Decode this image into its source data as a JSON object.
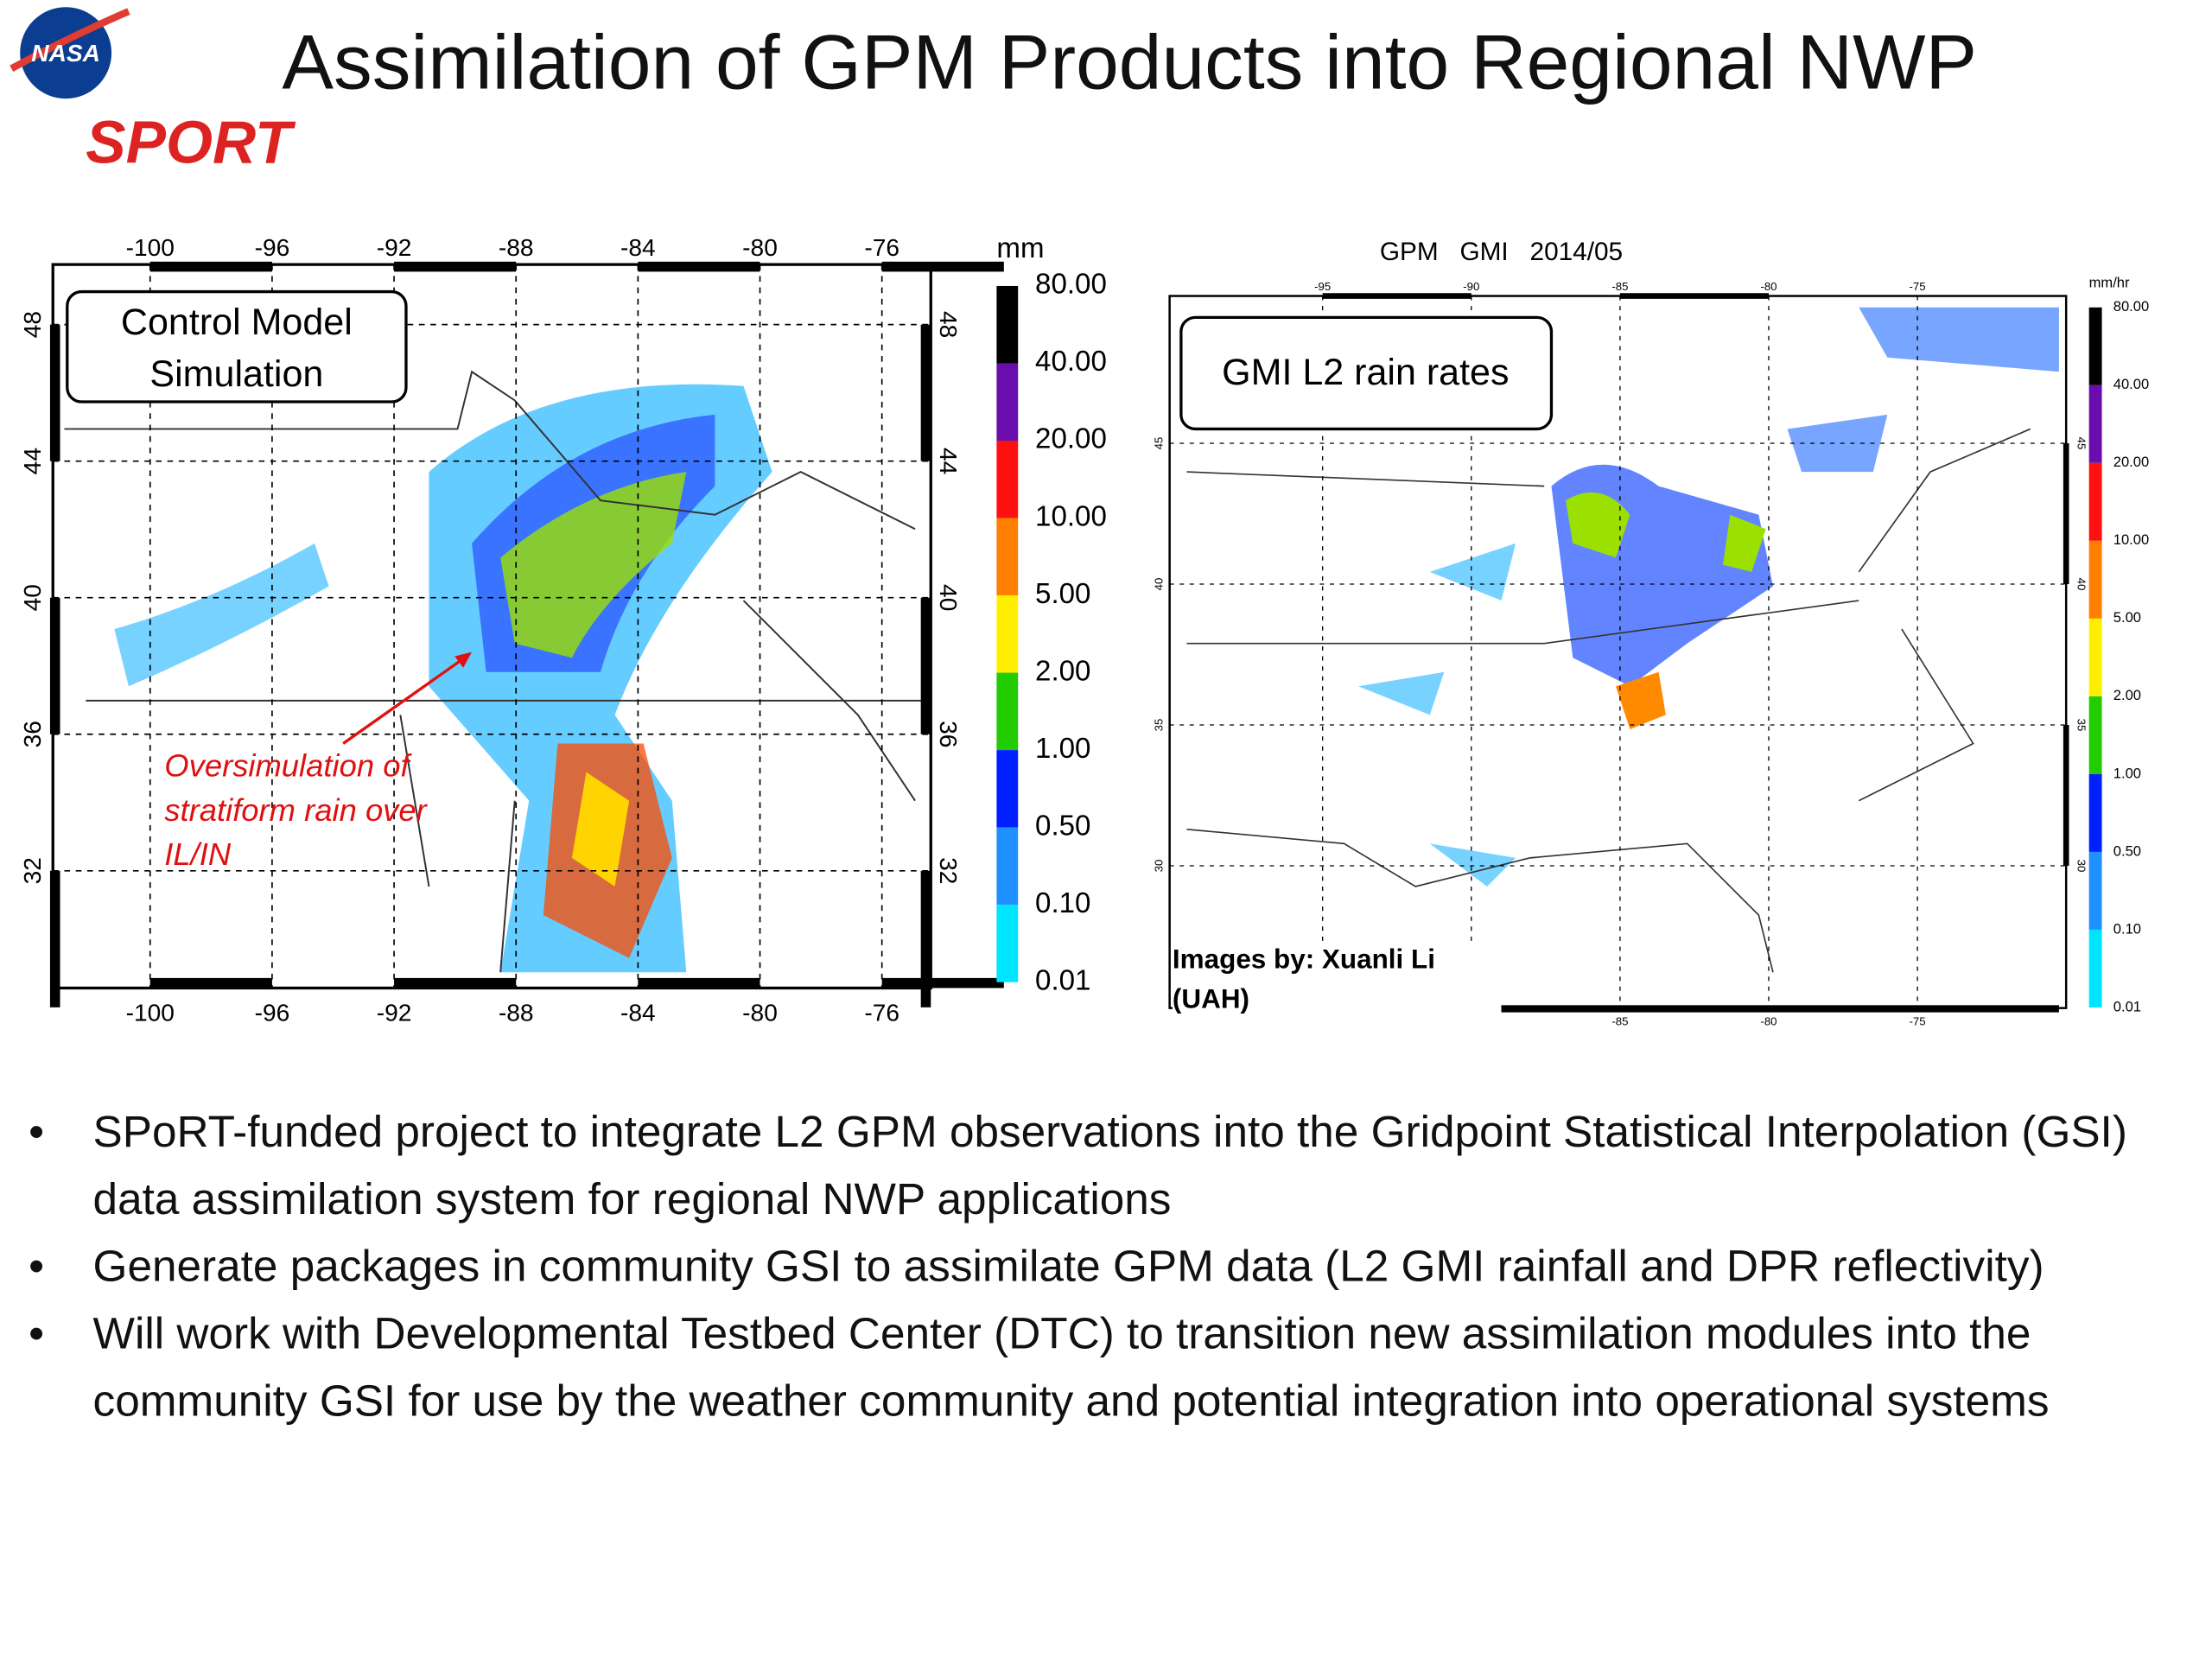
{
  "header": {
    "title": "Assimilation of GPM Products into Regional NWP",
    "logos": [
      "NASA",
      "SPORT"
    ]
  },
  "left_panel": {
    "label": "Control Model Simulation",
    "annotation": "Oversimulation of stratiform rain over IL/IN",
    "lon_ticks": [
      "-100",
      "-96",
      "-92",
      "-88",
      "-84",
      "-80",
      "-76"
    ],
    "lat_ticks": [
      "48",
      "44",
      "40",
      "36",
      "32"
    ],
    "colorbar": {
      "unit": "mm",
      "labels": [
        "80.00",
        "40.00",
        "20.00",
        "10.00",
        "5.00",
        "2.00",
        "1.00",
        "0.50",
        "0.10",
        "0.01"
      ]
    }
  },
  "right_panel": {
    "header": "GPM   GMI   2014/05",
    "label": "GMI L2 rain rates",
    "lon_ticks_top": [
      "-95",
      "-90",
      "-85",
      "-80",
      "-75"
    ],
    "lon_ticks_bottom": [
      "-85",
      "-80",
      "-75"
    ],
    "lat_ticks": [
      "45",
      "40",
      "35",
      "30"
    ],
    "colorbar": {
      "unit": "mm/hr",
      "labels": [
        "80.00",
        "40.00",
        "20.00",
        "10.00",
        "5.00",
        "2.00",
        "1.00",
        "0.50",
        "0.10",
        "0.01"
      ]
    },
    "credit": "Images by:  Xuanli Li (UAH)"
  },
  "bullets": [
    "SPoRT-funded project to integrate L2 GPM observations into the Gridpoint Statistical Interpolation (GSI) data assimilation system for regional NWP applications",
    "Generate packages in community GSI to assimilate GPM data (L2 GMI rainfall and DPR reflectivity)",
    "Will work with Developmental Testbed Center (DTC) to transition new assimilation modules into the community GSI for use by the weather community and potential integration into operational systems"
  ]
}
